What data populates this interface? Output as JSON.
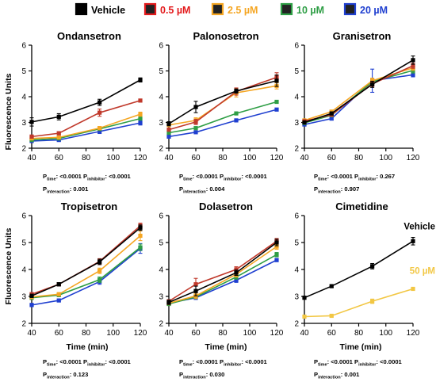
{
  "legend": {
    "items": [
      {
        "label": "Vehicle",
        "color": "#000000",
        "text_color": "#000000"
      },
      {
        "label": "0.5 µM",
        "color": "#e31a1c",
        "text_color": "#e31a1c"
      },
      {
        "label": "2.5 µM",
        "color": "#f5a623",
        "text_color": "#f5a623"
      },
      {
        "label": "10 µM",
        "color": "#2e9e45",
        "text_color": "#2e9e45"
      },
      {
        "label": "20 µM",
        "color": "#2040d0",
        "text_color": "#2040d0"
      }
    ]
  },
  "ylabel": "Fluorescence Units",
  "xlabel": "Time (min)",
  "chart_data": [
    {
      "type": "line",
      "title": "Ondansetron",
      "x": [
        40,
        60,
        90,
        120
      ],
      "xlim": [
        40,
        120
      ],
      "ylim": [
        2,
        6
      ],
      "xticks": [
        "40",
        "60",
        "80",
        "100",
        "120"
      ],
      "yticks": [
        "2",
        "3",
        "4",
        "5",
        "6"
      ],
      "series": [
        {
          "color": "#000000",
          "values": [
            3.02,
            3.22,
            3.78,
            4.65
          ],
          "err": [
            0.16,
            0.12,
            0.12,
            0.08
          ]
        },
        {
          "color": "#c0392b",
          "values": [
            2.45,
            2.58,
            3.38,
            3.85
          ],
          "err": [
            0.06,
            0.06,
            0.14,
            0.04
          ]
        },
        {
          "color": "#f5a623",
          "values": [
            2.38,
            2.42,
            2.78,
            3.32
          ],
          "err": [
            0.05,
            0.05,
            0.06,
            0.08
          ]
        },
        {
          "color": "#2e9e45",
          "values": [
            2.32,
            2.38,
            2.75,
            3.15
          ],
          "err": [
            0.04,
            0.04,
            0.05,
            0.05
          ]
        },
        {
          "color": "#2040d0",
          "values": [
            2.28,
            2.32,
            2.65,
            2.98
          ],
          "err": [
            0.04,
            0.04,
            0.08,
            0.08
          ]
        }
      ],
      "stats": {
        "time": "<0.0001",
        "inhibitor": "<0.0001",
        "interaction": "0.001"
      }
    },
    {
      "type": "line",
      "title": "Palonosetron",
      "x": [
        40,
        60,
        90,
        120
      ],
      "xlim": [
        40,
        120
      ],
      "ylim": [
        2,
        6
      ],
      "xticks": [
        "40",
        "60",
        "80",
        "100",
        "120"
      ],
      "yticks": [
        "2",
        "3",
        "4",
        "5",
        "6"
      ],
      "series": [
        {
          "color": "#000000",
          "values": [
            2.95,
            3.6,
            4.22,
            4.62
          ],
          "err": [
            0.08,
            0.22,
            0.08,
            0.22
          ]
        },
        {
          "color": "#c0392b",
          "values": [
            2.72,
            3.02,
            4.2,
            4.75
          ],
          "err": [
            0.06,
            0.1,
            0.14,
            0.18
          ]
        },
        {
          "color": "#f5a623",
          "values": [
            2.9,
            3.08,
            4.15,
            4.42
          ],
          "err": [
            0.06,
            0.1,
            0.16,
            0.12
          ]
        },
        {
          "color": "#2e9e45",
          "values": [
            2.6,
            2.78,
            3.35,
            3.8
          ],
          "err": [
            0.05,
            0.05,
            0.05,
            0.04
          ]
        },
        {
          "color": "#2040d0",
          "values": [
            2.45,
            2.62,
            3.08,
            3.5
          ],
          "err": [
            0.04,
            0.04,
            0.04,
            0.04
          ]
        }
      ],
      "stats": {
        "time": "<0.0001",
        "inhibitor": "<0.0001",
        "interaction": "0.004"
      }
    },
    {
      "type": "line",
      "title": "Granisetron",
      "x": [
        40,
        60,
        90,
        120
      ],
      "xlim": [
        40,
        120
      ],
      "ylim": [
        2,
        6
      ],
      "xticks": [
        "40",
        "60",
        "80",
        "100",
        "120"
      ],
      "yticks": [
        "2",
        "3",
        "4",
        "5",
        "6"
      ],
      "series": [
        {
          "color": "#000000",
          "values": [
            3.0,
            3.35,
            4.48,
            5.42
          ],
          "err": [
            0.06,
            0.06,
            0.12,
            0.16
          ]
        },
        {
          "color": "#c0392b",
          "values": [
            3.05,
            3.3,
            4.5,
            5.2
          ],
          "err": [
            0.05,
            0.05,
            0.1,
            0.1
          ]
        },
        {
          "color": "#f5a623",
          "values": [
            3.08,
            3.42,
            4.62,
            5.12
          ],
          "err": [
            0.05,
            0.05,
            0.1,
            0.1
          ]
        },
        {
          "color": "#2e9e45",
          "values": [
            2.98,
            3.28,
            4.58,
            5.02
          ],
          "err": [
            0.05,
            0.05,
            0.1,
            0.1
          ]
        },
        {
          "color": "#2040d0",
          "values": [
            2.92,
            3.15,
            4.62,
            4.85
          ],
          "err": [
            0.05,
            0.05,
            0.45,
            0.08
          ]
        }
      ],
      "stats": {
        "time": "<0.0001",
        "inhibitor": "0.267",
        "interaction": "0.907"
      }
    },
    {
      "type": "line",
      "title": "Tropisetron",
      "x": [
        40,
        60,
        90,
        120
      ],
      "xlim": [
        40,
        120
      ],
      "ylim": [
        2,
        6
      ],
      "xticks": [
        "40",
        "60",
        "80",
        "100",
        "120"
      ],
      "yticks": [
        "2",
        "3",
        "4",
        "5",
        "6"
      ],
      "series": [
        {
          "color": "#000000",
          "values": [
            3.02,
            3.45,
            4.28,
            5.55
          ],
          "err": [
            0.06,
            0.06,
            0.1,
            0.1
          ]
        },
        {
          "color": "#c0392b",
          "values": [
            3.08,
            3.45,
            4.3,
            5.62
          ],
          "err": [
            0.06,
            0.06,
            0.1,
            0.1
          ]
        },
        {
          "color": "#f5a623",
          "values": [
            2.98,
            3.08,
            3.95,
            5.25
          ],
          "err": [
            0.06,
            0.06,
            0.1,
            0.18
          ]
        },
        {
          "color": "#2e9e45",
          "values": [
            2.95,
            3.05,
            3.62,
            4.82
          ],
          "err": [
            0.06,
            0.06,
            0.1,
            0.12
          ]
        },
        {
          "color": "#2040d0",
          "values": [
            2.68,
            2.85,
            3.55,
            4.78
          ],
          "err": [
            0.06,
            0.05,
            0.1,
            0.18
          ]
        }
      ],
      "stats": {
        "time": "<0.0001",
        "inhibitor": "<0.0001",
        "interaction": "0.123"
      }
    },
    {
      "type": "line",
      "title": "Dolasetron",
      "x": [
        40,
        60,
        90,
        120
      ],
      "xlim": [
        40,
        120
      ],
      "ylim": [
        2,
        6
      ],
      "xticks": [
        "40",
        "60",
        "80",
        "100",
        "120"
      ],
      "yticks": [
        "2",
        "3",
        "4",
        "5",
        "6"
      ],
      "series": [
        {
          "color": "#000000",
          "values": [
            2.78,
            3.2,
            3.88,
            5.0
          ],
          "err": [
            0.08,
            0.18,
            0.1,
            0.12
          ]
        },
        {
          "color": "#c0392b",
          "values": [
            2.82,
            3.45,
            4.0,
            5.05
          ],
          "err": [
            0.06,
            0.22,
            0.1,
            0.1
          ]
        },
        {
          "color": "#f5a623",
          "values": [
            2.75,
            3.02,
            3.82,
            4.85
          ],
          "err": [
            0.05,
            0.1,
            0.1,
            0.1
          ]
        },
        {
          "color": "#2e9e45",
          "values": [
            2.72,
            2.98,
            3.72,
            4.55
          ],
          "err": [
            0.05,
            0.06,
            0.08,
            0.08
          ]
        },
        {
          "color": "#2040d0",
          "values": [
            2.75,
            2.95,
            3.6,
            4.35
          ],
          "err": [
            0.05,
            0.06,
            0.08,
            0.06
          ]
        }
      ],
      "stats": {
        "time": "<0.0001",
        "inhibitor": "<0.0001",
        "interaction": "0.030"
      }
    },
    {
      "type": "line",
      "title": "Cimetidine",
      "x": [
        40,
        60,
        90,
        120
      ],
      "xlim": [
        40,
        120
      ],
      "ylim": [
        2,
        6
      ],
      "xticks": [
        "40",
        "60",
        "80",
        "100",
        "120"
      ],
      "yticks": [
        "2",
        "3",
        "4",
        "5",
        "6"
      ],
      "series": [
        {
          "name": "Vehicle",
          "color": "#000000",
          "values": [
            2.95,
            3.38,
            4.12,
            5.05
          ],
          "err": [
            0.04,
            0.04,
            0.1,
            0.14
          ]
        },
        {
          "name": "50 µM",
          "color": "#f2c744",
          "values": [
            2.25,
            2.28,
            2.82,
            3.28
          ],
          "err": [
            0.04,
            0.04,
            0.08,
            0.04
          ]
        }
      ],
      "stats": {
        "time": "<0.0001",
        "inhibitor": "<0.0001",
        "interaction": "0.001"
      }
    }
  ]
}
